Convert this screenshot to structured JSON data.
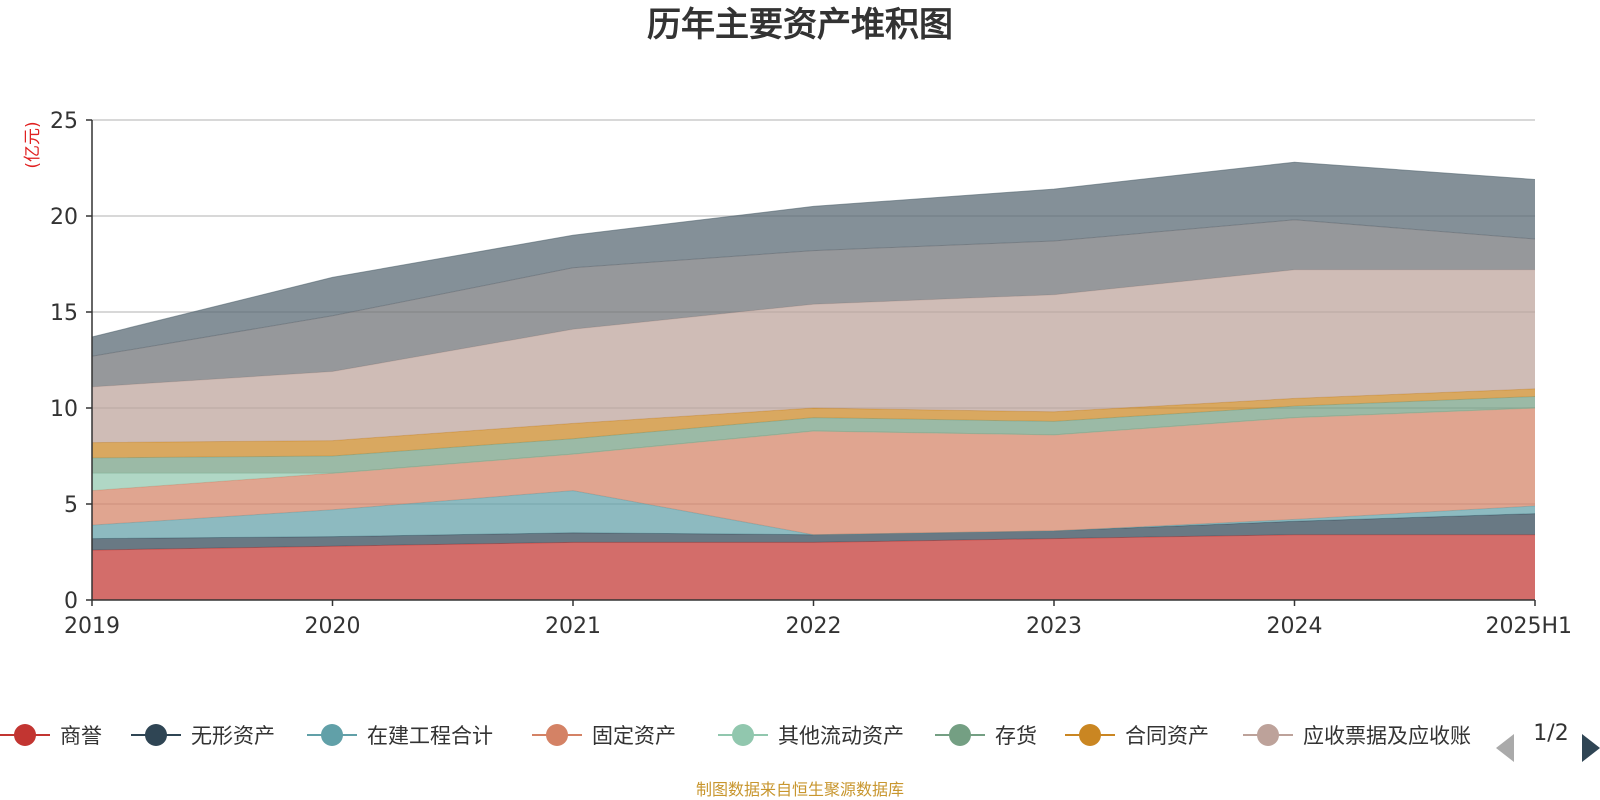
{
  "chart_data": {
    "type": "area",
    "stacked": true,
    "title": "历年主要资产堆积图",
    "unit_label": "(亿元)",
    "x": [
      "2019",
      "2020",
      "2021",
      "2022",
      "2023",
      "2024",
      "2025H1"
    ],
    "ylim": [
      0,
      25
    ],
    "yticks": [
      "0",
      "5",
      "10",
      "15",
      "20",
      "25"
    ],
    "grid": true,
    "series": [
      {
        "name": "商誉",
        "color": "#c23531",
        "values": [
          2.6,
          2.8,
          3.0,
          3.0,
          3.2,
          3.4,
          3.4
        ]
      },
      {
        "name": "无形资产",
        "color": "#2f4554",
        "values": [
          0.6,
          0.5,
          0.5,
          0.4,
          0.4,
          0.7,
          1.1
        ]
      },
      {
        "name": "在建工程合计",
        "color": "#61a0a8",
        "values": [
          0.7,
          1.4,
          2.2,
          0.0,
          0.0,
          0.1,
          0.4
        ]
      },
      {
        "name": "固定资产",
        "color": "#d48265",
        "values": [
          1.8,
          1.9,
          1.9,
          5.4,
          5.0,
          5.3,
          5.1
        ]
      },
      {
        "name": "其他流动资产",
        "color": "#91c7ae",
        "values": [
          0.9,
          0.0,
          0.0,
          0.0,
          0.0,
          0.0,
          0.0
        ]
      },
      {
        "name": "存货",
        "color": "#749f83",
        "values": [
          0.8,
          0.9,
          0.8,
          0.7,
          0.7,
          0.6,
          0.6
        ]
      },
      {
        "name": "合同资产",
        "color": "#ca8622",
        "values": [
          0.8,
          0.8,
          0.8,
          0.5,
          0.5,
          0.4,
          0.4
        ]
      },
      {
        "name": "应收票据及应收账款",
        "color": "#bda29a",
        "values": [
          2.9,
          3.6,
          4.9,
          5.4,
          6.1,
          6.7,
          6.2
        ]
      },
      {
        "name": "",
        "color": "#6e7074",
        "values": [
          1.6,
          2.9,
          3.2,
          2.8,
          2.8,
          2.6,
          1.6
        ]
      },
      {
        "name": "",
        "color": "#546570",
        "values": [
          1.0,
          2.0,
          1.7,
          2.3,
          2.7,
          3.0,
          3.1
        ]
      }
    ]
  },
  "legend": {
    "visible_labels": [
      "商誉",
      "无形资产",
      "在建工程合计",
      "固定资产",
      "其他流动资产",
      "存货",
      "合同资产",
      "应收票据及应收账"
    ],
    "page": "1/2"
  },
  "source_text": "制图数据来自恒生聚源数据库"
}
